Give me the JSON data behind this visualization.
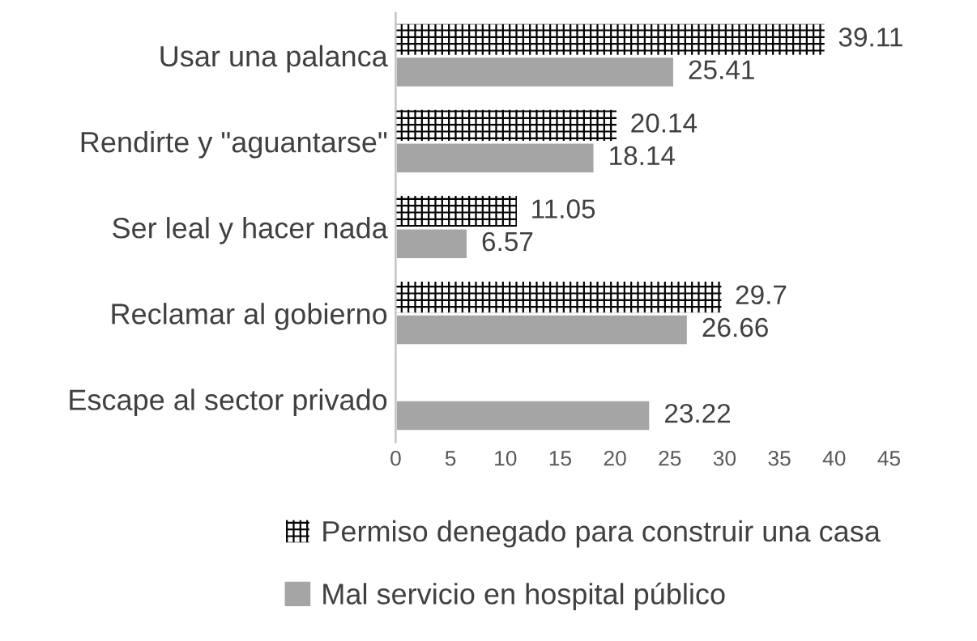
{
  "chart_data": {
    "type": "bar",
    "orientation": "horizontal",
    "categories": [
      "Usar una palanca",
      "Rendirte y \"aguantarse\"",
      "Ser leal y hacer nada",
      "Reclamar al gobierno",
      "Escape al sector privado"
    ],
    "series": [
      {
        "name": "Permiso denegado para construir una casa",
        "color": "#000000",
        "values": [
          39.11,
          20.14,
          11.05,
          29.7,
          null
        ]
      },
      {
        "name": "Mal servicio en hospital público",
        "color": "#a5a5a5",
        "values": [
          25.41,
          18.14,
          6.57,
          26.66,
          23.22
        ]
      }
    ],
    "xlim": [
      0,
      45
    ],
    "xticks": [
      0,
      5,
      10,
      15,
      20,
      25,
      30,
      35,
      40,
      45
    ],
    "data_labels": true,
    "grid": false,
    "legend": "bottom"
  }
}
